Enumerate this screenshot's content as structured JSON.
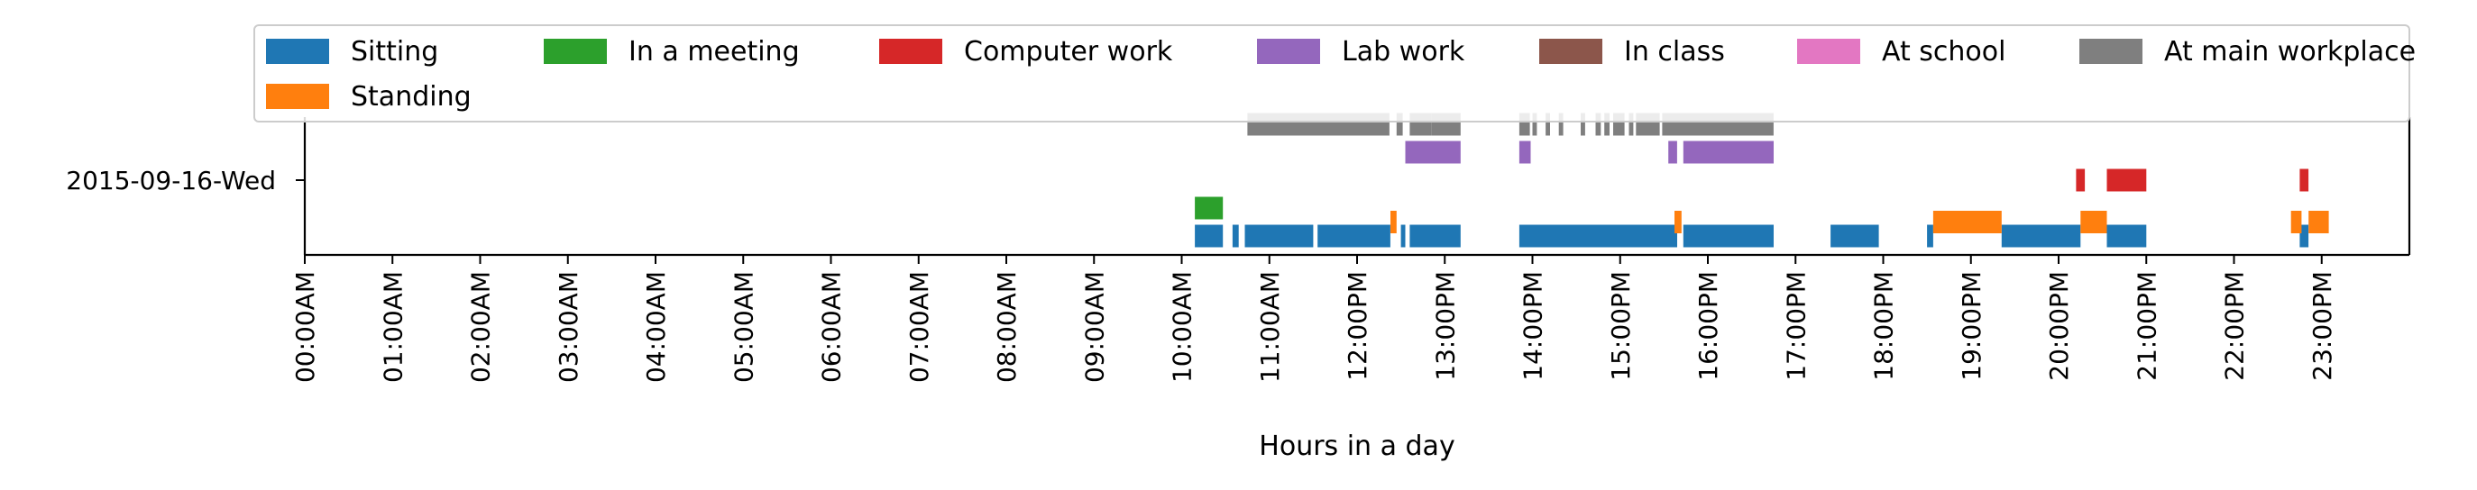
{
  "chart_data": {
    "type": "timeline",
    "title": "",
    "xlabel": "Hours in a day",
    "ylabel": "",
    "xlim": [
      0,
      24
    ],
    "x_tick_values": [
      0,
      1,
      2,
      3,
      4,
      5,
      6,
      7,
      8,
      9,
      10,
      11,
      12,
      13,
      14,
      15,
      16,
      17,
      18,
      19,
      20,
      21,
      22,
      23
    ],
    "x_tick_labels": [
      "00:00AM",
      "01:00AM",
      "02:00AM",
      "03:00AM",
      "04:00AM",
      "05:00AM",
      "06:00AM",
      "07:00AM",
      "08:00AM",
      "09:00AM",
      "10:00AM",
      "11:00AM",
      "12:00PM",
      "13:00PM",
      "14:00PM",
      "15:00PM",
      "16:00PM",
      "17:00PM",
      "18:00PM",
      "19:00PM",
      "20:00PM",
      "21:00PM",
      "22:00PM",
      "23:00PM"
    ],
    "y_tick_labels": [
      "2015-09-16-Wed"
    ],
    "legend_location": "top",
    "legend": [
      {
        "name": "Sitting",
        "color": "#1f77b4"
      },
      {
        "name": "In a meeting",
        "color": "#2ca02c"
      },
      {
        "name": "Computer work",
        "color": "#d62728"
      },
      {
        "name": "Lab work",
        "color": "#9467bd"
      },
      {
        "name": "In class",
        "color": "#8c564b"
      },
      {
        "name": "At school",
        "color": "#e377c2"
      },
      {
        "name": "At main workplace",
        "color": "#7f7f7f"
      },
      {
        "name": "Standing",
        "color": "#ff7f0e"
      }
    ],
    "series": [
      {
        "name": "At main workplace",
        "lane": 4,
        "color": "#7f7f7f",
        "intervals": [
          [
            10.75,
            12.37
          ],
          [
            12.45,
            12.52
          ],
          [
            12.6,
            12.85
          ],
          [
            12.85,
            13.18
          ],
          [
            13.85,
            13.97
          ],
          [
            14.0,
            14.05
          ],
          [
            14.15,
            14.2
          ],
          [
            14.3,
            14.35
          ],
          [
            14.55,
            14.6
          ],
          [
            14.72,
            14.78
          ],
          [
            14.82,
            14.88
          ],
          [
            14.92,
            15.05
          ],
          [
            15.1,
            15.15
          ],
          [
            15.18,
            15.45
          ],
          [
            15.48,
            16.75
          ]
        ]
      },
      {
        "name": "Lab work",
        "lane": 3,
        "color": "#9467bd",
        "intervals": [
          [
            12.55,
            13.18
          ],
          [
            13.85,
            13.98
          ],
          [
            15.55,
            15.65
          ],
          [
            15.72,
            16.75
          ]
        ]
      },
      {
        "name": "Computer work",
        "lane": 2,
        "color": "#d62728",
        "intervals": [
          [
            20.2,
            20.3
          ],
          [
            20.55,
            21.0
          ],
          [
            22.75,
            22.85
          ]
        ]
      },
      {
        "name": "In a meeting",
        "lane": 1,
        "color": "#2ca02c",
        "intervals": [
          [
            10.15,
            10.47
          ]
        ]
      },
      {
        "name": "Sitting",
        "lane": 0,
        "color": "#1f77b4",
        "intervals": [
          [
            10.15,
            10.47
          ],
          [
            10.58,
            10.65
          ],
          [
            10.72,
            11.5
          ],
          [
            11.55,
            12.38
          ],
          [
            12.5,
            12.55
          ],
          [
            12.6,
            13.18
          ],
          [
            13.85,
            15.65
          ],
          [
            15.72,
            16.75
          ],
          [
            17.4,
            17.95
          ],
          [
            18.5,
            18.57
          ],
          [
            19.35,
            20.25
          ],
          [
            20.55,
            21.0
          ],
          [
            22.75,
            22.85
          ]
        ]
      },
      {
        "name": "Standing",
        "lane": 0.5,
        "color": "#ff7f0e",
        "intervals": [
          [
            12.38,
            12.45
          ],
          [
            15.62,
            15.7
          ],
          [
            18.57,
            19.35
          ],
          [
            20.25,
            20.55
          ],
          [
            22.65,
            22.77
          ],
          [
            22.85,
            23.08
          ]
        ]
      }
    ]
  }
}
